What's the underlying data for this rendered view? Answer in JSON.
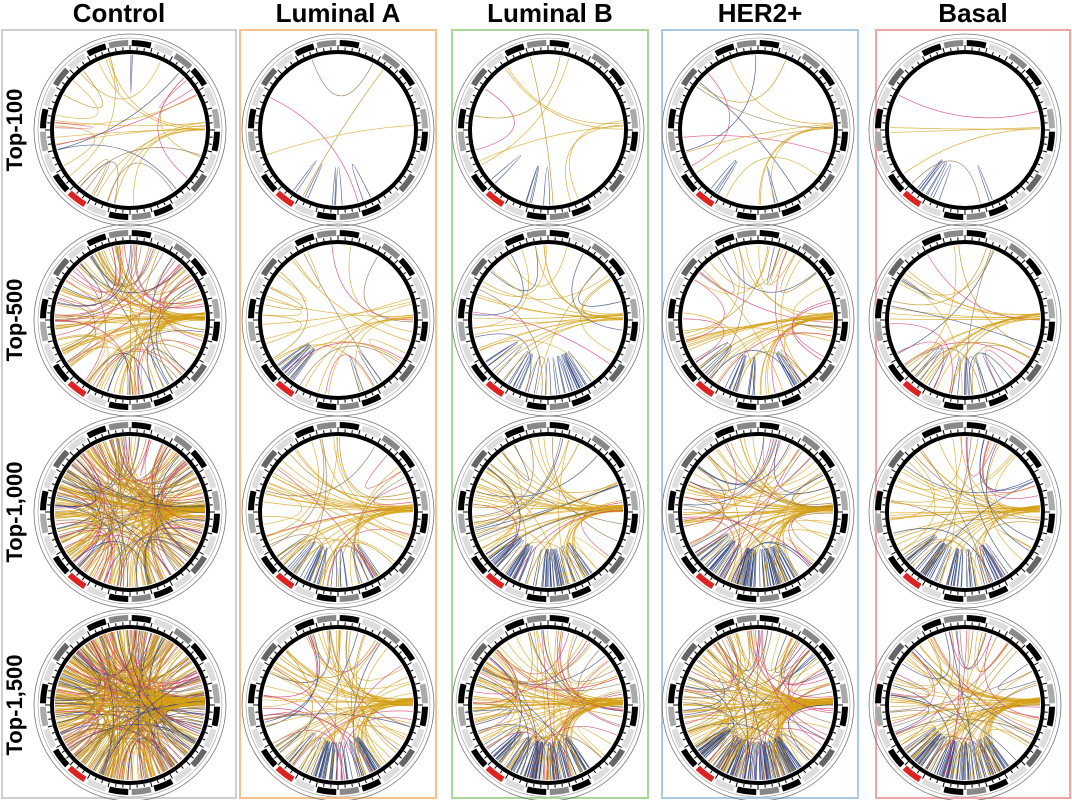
{
  "columns": [
    "Control",
    "Luminal A",
    "Luminal B",
    "HER2+",
    "Basal"
  ],
  "rows": [
    "Top-100",
    "Top-500",
    "Top-1,000",
    "Top-1,500"
  ]
}
